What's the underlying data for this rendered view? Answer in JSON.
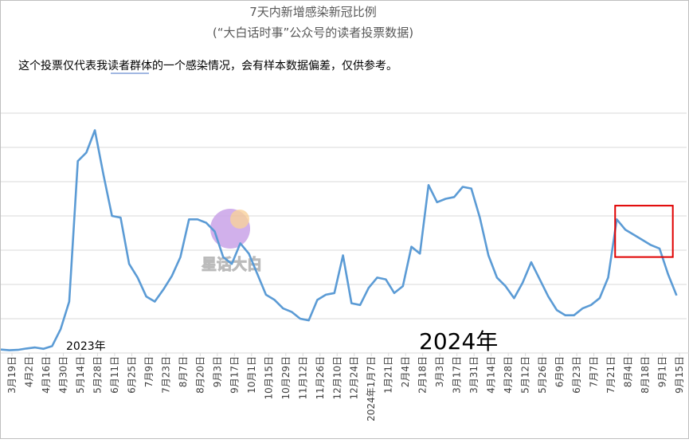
{
  "chart_data": {
    "type": "line",
    "title": "7天内新增感染新冠比例",
    "subtitle": "(“大白话时事”公众号的读者投票数据)",
    "note": "这个投票仅代表我读者群体的一个感染情况，会有样本数据偏差，仅供参考。",
    "watermark": "星话大白",
    "annotations": [
      "2023年",
      "2024年"
    ],
    "xlabel": "",
    "ylabel": "",
    "ylim": [
      0,
      1
    ],
    "grid": true,
    "y_tick_labels_shown": false,
    "x_tick_labels": [
      "3月19日",
      "4月2日",
      "4月16日",
      "4月30日",
      "5月14日",
      "5月28日",
      "6月11日",
      "6月25日",
      "7月9日",
      "7月23日",
      "8月7日",
      "8月20日",
      "9月3日",
      "9月17日",
      "10月1日",
      "10月15日",
      "10月29日",
      "11月12日",
      "11月26日",
      "12月10日",
      "12月24日",
      "2024年1月7日",
      "1月21日",
      "2月4日",
      "2月18日",
      "3月3日",
      "3月17日",
      "3月31日",
      "4月14日",
      "4月28日",
      "5月12日",
      "5月26日",
      "6月9日",
      "6月23日",
      "7月7日",
      "7月21日",
      "8月4日",
      "8月18日",
      "9月1日",
      "9月15日"
    ],
    "series": [
      {
        "color": "#5b9bd5",
        "values": [
          0.01,
          0.008,
          0.009,
          0.013,
          0.016,
          0.012,
          0.02,
          0.07,
          0.15,
          0.56,
          0.585,
          0.65,
          0.52,
          0.4,
          0.395,
          0.26,
          0.22,
          0.165,
          0.15,
          0.185,
          0.225,
          0.28,
          0.39,
          0.39,
          0.38,
          0.355,
          0.28,
          0.26,
          0.32,
          0.29,
          0.23,
          0.17,
          0.155,
          0.13,
          0.12,
          0.1,
          0.095,
          0.155,
          0.17,
          0.175,
          0.285,
          0.145,
          0.14,
          0.19,
          0.22,
          0.215,
          0.175,
          0.195,
          0.31,
          0.29,
          0.49,
          0.44,
          0.45,
          0.455,
          0.485,
          0.48,
          0.395,
          0.285,
          0.22,
          0.195,
          0.16,
          0.205,
          0.265,
          0.215,
          0.165,
          0.125,
          0.11,
          0.11,
          0.13,
          0.14,
          0.16,
          0.22,
          0.39,
          0.36,
          0.345,
          0.33,
          0.315,
          0.305,
          0.23,
          0.168
        ]
      }
    ],
    "highlight_box": {
      "from_index": 72,
      "to_index": 78,
      "y_range": [
        0.28,
        0.43
      ],
      "color": "#e00000"
    }
  }
}
